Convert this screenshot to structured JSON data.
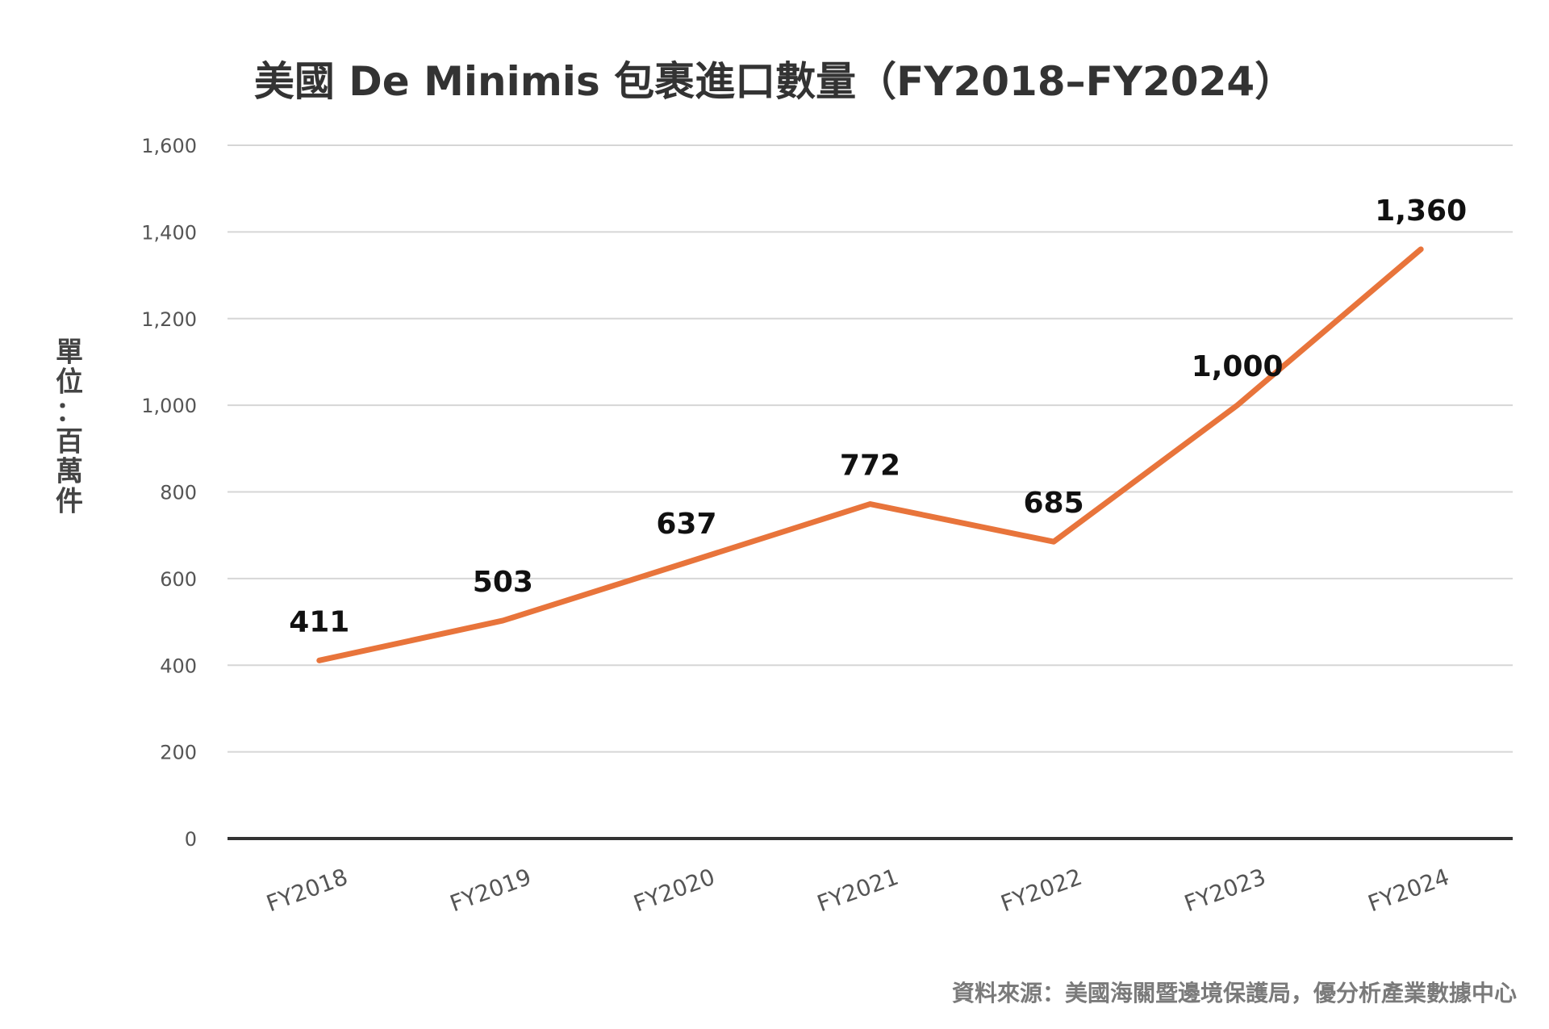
{
  "chart_data": {
    "type": "line",
    "title": "美國 De Minimis 包裹進口數量（FY2018–FY2024）",
    "ylabel": "單位：百萬件",
    "xlabel": "",
    "categories": [
      "FY2018",
      "FY2019",
      "FY2020",
      "FY2021",
      "FY2022",
      "FY2023",
      "FY2024"
    ],
    "series": [
      {
        "values": [
          411,
          503,
          637,
          772,
          685,
          1000,
          1360
        ],
        "data_labels": [
          "411",
          "503",
          "637",
          "772",
          "685",
          "1,000",
          "1,360"
        ]
      }
    ],
    "ylim": [
      0,
      1600
    ],
    "yticks": [
      0,
      200,
      400,
      600,
      800,
      1000,
      1200,
      1400,
      1600
    ],
    "ytick_labels": [
      "0",
      "200",
      "400",
      "600",
      "800",
      "1,000",
      "1,200",
      "1,400",
      "1,600"
    ],
    "grid": true,
    "legend": "none",
    "line_color": "#E8743B"
  },
  "source_note": "資料來源：美國海關暨邊境保護局，優分析產業數據中心"
}
